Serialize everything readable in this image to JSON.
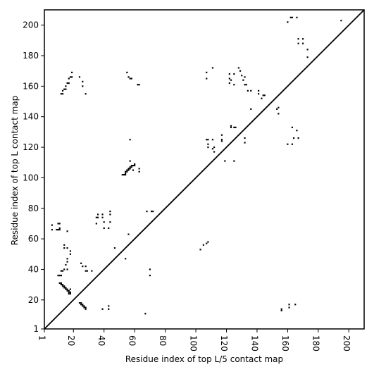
{
  "chart_data": {
    "type": "scatter",
    "title": "",
    "xlabel": "Residue index of top L/5 contact map",
    "ylabel": "Residue index of top L contact map",
    "xlim": [
      1,
      210
    ],
    "ylim": [
      1,
      210
    ],
    "xticks": [
      1,
      20,
      40,
      60,
      80,
      100,
      120,
      140,
      160,
      180,
      200
    ],
    "yticks": [
      1,
      20,
      40,
      60,
      80,
      100,
      120,
      140,
      160,
      180,
      200
    ],
    "xtick_labels": [
      "1",
      "20",
      "40",
      "60",
      "80",
      "100",
      "120",
      "140",
      "160",
      "180",
      "200"
    ],
    "ytick_labels": [
      "1",
      "20",
      "40",
      "60",
      "80",
      "100",
      "120",
      "140",
      "160",
      "180",
      "200"
    ],
    "grid": false,
    "diagonal_line": true,
    "marker_color": "#000000",
    "points": [
      [
        6,
        69
      ],
      [
        6,
        66
      ],
      [
        9,
        66
      ],
      [
        10,
        66
      ],
      [
        11,
        66
      ],
      [
        11,
        67
      ],
      [
        10,
        70
      ],
      [
        11,
        70
      ],
      [
        16,
        65
      ],
      [
        10,
        36
      ],
      [
        11,
        36
      ],
      [
        12,
        36
      ],
      [
        13,
        39
      ],
      [
        14,
        40
      ],
      [
        12,
        39
      ],
      [
        14,
        56
      ],
      [
        14,
        54
      ],
      [
        16,
        54
      ],
      [
        18,
        52
      ],
      [
        18,
        50
      ],
      [
        15,
        43
      ],
      [
        16,
        45
      ],
      [
        16,
        47
      ],
      [
        16,
        40
      ],
      [
        11,
        31
      ],
      [
        12,
        31
      ],
      [
        12,
        30
      ],
      [
        13,
        30
      ],
      [
        13,
        29
      ],
      [
        14,
        29
      ],
      [
        14,
        28
      ],
      [
        15,
        28
      ],
      [
        15,
        27
      ],
      [
        16,
        27
      ],
      [
        16,
        26
      ],
      [
        17,
        26
      ],
      [
        17,
        25
      ],
      [
        18,
        25
      ],
      [
        18,
        24
      ],
      [
        17,
        24
      ],
      [
        18,
        27
      ],
      [
        24,
        18
      ],
      [
        25,
        18
      ],
      [
        25,
        17
      ],
      [
        26,
        17
      ],
      [
        26,
        16
      ],
      [
        27,
        16
      ],
      [
        27,
        15
      ],
      [
        28,
        15
      ],
      [
        28,
        14
      ],
      [
        25,
        44
      ],
      [
        26,
        42
      ],
      [
        28,
        42
      ],
      [
        28,
        39
      ],
      [
        29,
        39
      ],
      [
        32,
        39
      ],
      [
        39,
        14
      ],
      [
        43,
        14
      ],
      [
        43,
        16
      ],
      [
        12,
        155
      ],
      [
        13,
        155
      ],
      [
        13,
        157
      ],
      [
        14,
        158
      ],
      [
        15,
        158
      ],
      [
        15,
        160
      ],
      [
        16,
        162
      ],
      [
        17,
        162
      ],
      [
        17,
        165
      ],
      [
        18,
        166
      ],
      [
        19,
        166
      ],
      [
        19,
        169
      ],
      [
        24,
        166
      ],
      [
        26,
        163
      ],
      [
        26,
        160
      ],
      [
        28,
        155
      ],
      [
        35,
        70
      ],
      [
        35,
        74
      ],
      [
        36,
        74
      ],
      [
        36,
        76
      ],
      [
        39,
        74
      ],
      [
        39,
        76
      ],
      [
        40,
        71
      ],
      [
        40,
        67
      ],
      [
        43,
        67
      ],
      [
        44,
        71
      ],
      [
        44,
        76
      ],
      [
        44,
        78
      ],
      [
        47,
        54
      ],
      [
        54,
        47
      ],
      [
        56,
        63
      ],
      [
        52,
        102
      ],
      [
        53,
        102
      ],
      [
        54,
        102
      ],
      [
        54,
        103
      ],
      [
        54,
        104
      ],
      [
        55,
        104
      ],
      [
        55,
        105
      ],
      [
        56,
        105
      ],
      [
        56,
        106
      ],
      [
        57,
        106
      ],
      [
        57,
        107
      ],
      [
        58,
        107
      ],
      [
        58,
        108
      ],
      [
        59,
        108
      ],
      [
        60,
        108
      ],
      [
        60,
        109
      ],
      [
        57,
        111
      ],
      [
        57,
        125
      ],
      [
        59,
        105
      ],
      [
        63,
        104
      ],
      [
        63,
        106
      ],
      [
        55,
        169
      ],
      [
        56,
        166
      ],
      [
        57,
        165
      ],
      [
        58,
        165
      ],
      [
        62,
        161
      ],
      [
        63,
        161
      ],
      [
        67,
        11
      ],
      [
        68,
        78
      ],
      [
        70,
        40
      ],
      [
        70,
        36
      ],
      [
        71,
        78
      ],
      [
        72,
        78
      ],
      [
        103,
        53
      ],
      [
        105,
        56
      ],
      [
        107,
        57
      ],
      [
        108,
        58
      ],
      [
        107,
        165
      ],
      [
        107,
        169
      ],
      [
        111,
        172
      ],
      [
        122,
        168
      ],
      [
        122,
        165
      ],
      [
        122,
        162
      ],
      [
        123,
        164
      ],
      [
        125,
        161
      ],
      [
        125,
        168
      ],
      [
        128,
        172
      ],
      [
        129,
        170
      ],
      [
        130,
        167
      ],
      [
        131,
        164
      ],
      [
        132,
        166
      ],
      [
        132,
        161
      ],
      [
        133,
        161
      ],
      [
        134,
        157
      ],
      [
        136,
        157
      ],
      [
        141,
        157
      ],
      [
        141,
        155
      ],
      [
        143,
        152
      ],
      [
        144,
        154
      ],
      [
        145,
        154
      ],
      [
        153,
        145
      ],
      [
        154,
        146
      ],
      [
        154,
        142
      ],
      [
        136,
        145
      ],
      [
        107,
        125
      ],
      [
        108,
        125
      ],
      [
        108,
        122
      ],
      [
        108,
        120
      ],
      [
        111,
        125
      ],
      [
        111,
        119
      ],
      [
        112,
        117
      ],
      [
        112,
        120
      ],
      [
        117,
        128
      ],
      [
        117,
        125
      ],
      [
        117,
        124
      ],
      [
        119,
        111
      ],
      [
        123,
        134
      ],
      [
        123,
        133
      ],
      [
        125,
        111
      ],
      [
        125,
        133
      ],
      [
        126,
        133
      ],
      [
        132,
        126
      ],
      [
        132,
        123
      ],
      [
        160,
        202
      ],
      [
        162,
        205
      ],
      [
        163,
        205
      ],
      [
        166,
        205
      ],
      [
        167,
        191
      ],
      [
        167,
        188
      ],
      [
        170,
        191
      ],
      [
        170,
        188
      ],
      [
        173,
        184
      ],
      [
        173,
        179
      ],
      [
        195,
        203
      ],
      [
        160,
        122
      ],
      [
        163,
        122
      ],
      [
        163,
        133
      ],
      [
        166,
        131
      ],
      [
        167,
        126
      ],
      [
        164,
        126
      ],
      [
        156,
        14
      ],
      [
        156,
        13
      ],
      [
        161,
        17
      ],
      [
        161,
        15
      ],
      [
        165,
        17
      ]
    ]
  }
}
